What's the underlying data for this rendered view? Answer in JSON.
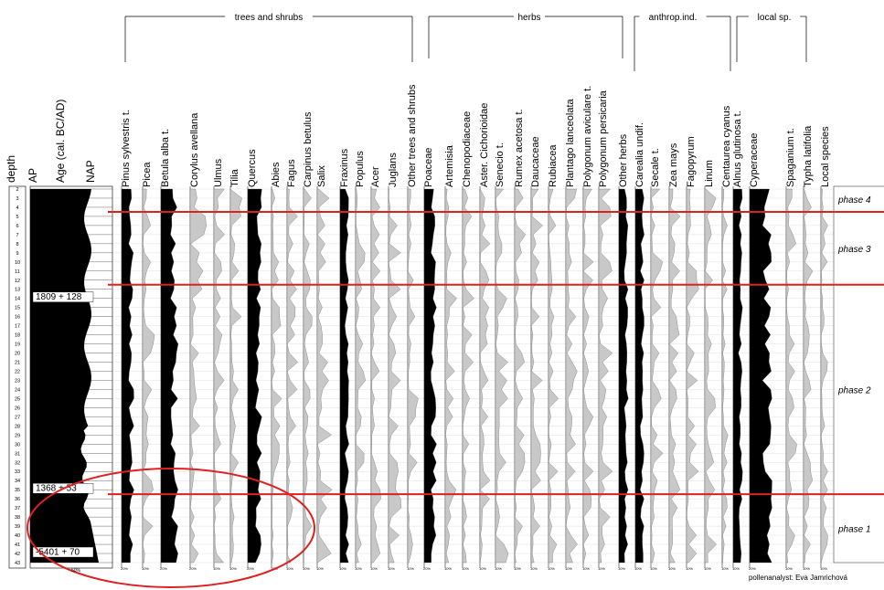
{
  "chart_data": {
    "type": "area",
    "depth_label": "depth",
    "age_label": "Age (cal. BC/AD)",
    "ap_label": "AP",
    "nap_label": "NAP",
    "depths": [
      "2",
      "3",
      "4",
      "5",
      "6",
      "7",
      "8",
      "9",
      "10",
      "11",
      "12",
      "13",
      "14",
      "15",
      "16",
      "17",
      "18",
      "19",
      "20",
      "21",
      "22",
      "23",
      "24",
      "25",
      "26",
      "27",
      "28",
      "29",
      "30",
      "31",
      "32",
      "33",
      "34",
      "35",
      "36",
      "37",
      "38",
      "39",
      "40",
      "41",
      "42",
      "43"
    ],
    "dates": [
      {
        "text": "1809 + 128",
        "depth": 14
      },
      {
        "text": "1368 + 53",
        "depth": 35
      },
      {
        "text": "-5401 + 70",
        "depth": 42
      }
    ],
    "ap_axis_label": "50%",
    "groups": [
      {
        "name": "trees and shrubs"
      },
      {
        "name": "herbs"
      },
      {
        "name": "anthrop.ind."
      },
      {
        "name": "local sp."
      }
    ],
    "taxa": [
      {
        "name": "Pinus sylvestris t.",
        "fill": "black",
        "tick": "20%"
      },
      {
        "name": "Picea",
        "fill": "grey",
        "tick": "10%"
      },
      {
        "name": "Betula alba t.",
        "fill": "black",
        "tick": "20%"
      },
      {
        "name": "Corylus avellana",
        "fill": "grey",
        "tick": "20%"
      },
      {
        "name": "Ulmus",
        "fill": "grey",
        "tick": "10%"
      },
      {
        "name": "Tilia",
        "fill": "grey",
        "tick": "10%"
      },
      {
        "name": "Quercus",
        "fill": "black",
        "tick": "20%"
      },
      {
        "name": "Abies",
        "fill": "grey",
        "tick": "10%"
      },
      {
        "name": "Fagus",
        "fill": "grey",
        "tick": "10%"
      },
      {
        "name": "Carpinus betulus",
        "fill": "grey",
        "tick": "10%"
      },
      {
        "name": "Salix",
        "fill": "grey",
        "tick": "10%"
      },
      {
        "name": "Fraxinus",
        "fill": "black",
        "tick": "10%"
      },
      {
        "name": "Populus",
        "fill": "grey",
        "tick": "10%"
      },
      {
        "name": "Acer",
        "fill": "grey",
        "tick": "10%"
      },
      {
        "name": "Juglans",
        "fill": "grey",
        "tick": "10%"
      },
      {
        "name": "Other trees and shrubs",
        "fill": "grey",
        "tick": "10%"
      },
      {
        "name": "Poaceae",
        "fill": "black",
        "tick": "20%"
      },
      {
        "name": "Artemisia",
        "fill": "grey",
        "tick": "10%"
      },
      {
        "name": "Chenopodiaceae",
        "fill": "grey",
        "tick": "10%"
      },
      {
        "name": "Aster. Cichorioidae",
        "fill": "grey",
        "tick": "10%"
      },
      {
        "name": "Senecio t.",
        "fill": "grey",
        "tick": "10%"
      },
      {
        "name": "Rumex acetosa t.",
        "fill": "grey",
        "tick": "10%"
      },
      {
        "name": "Daucaceae",
        "fill": "grey",
        "tick": "10%"
      },
      {
        "name": "Rubiacea",
        "fill": "grey",
        "tick": "10%"
      },
      {
        "name": "Plantago lanceolata",
        "fill": "grey",
        "tick": "10%"
      },
      {
        "name": "Polygonum aviculare t.",
        "fill": "grey",
        "tick": "10%"
      },
      {
        "name": "Polygonum persicaria",
        "fill": "grey",
        "tick": "10%"
      },
      {
        "name": "Other herbs",
        "fill": "black",
        "tick": "10%"
      },
      {
        "name": "Carealia undif.",
        "fill": "black",
        "tick": "10%"
      },
      {
        "name": "Secale t.",
        "fill": "grey",
        "tick": "10%"
      },
      {
        "name": "Zea mays",
        "fill": "grey",
        "tick": "10%"
      },
      {
        "name": "Fagopyrum",
        "fill": "grey",
        "tick": "10%"
      },
      {
        "name": "Linum",
        "fill": "grey",
        "tick": "10%"
      },
      {
        "name": "Centaurea cyanus",
        "fill": "grey",
        "tick": "10%"
      },
      {
        "name": "Alnus glutinosa t.",
        "fill": "black",
        "tick": "10%"
      },
      {
        "name": "Cyperaceae",
        "fill": "black",
        "tick": "20%"
      },
      {
        "name": "Spaganium t.",
        "fill": "grey",
        "tick": "10%"
      },
      {
        "name": "Typha latifolia",
        "fill": "grey",
        "tick": "10%"
      },
      {
        "name": "Local species",
        "fill": "grey",
        "tick": "10%"
      }
    ],
    "phases": [
      {
        "name": "phase 4",
        "from_depth": 2,
        "to_depth": 4.5
      },
      {
        "name": "phase 3",
        "from_depth": 4.5,
        "to_depth": 12.5
      },
      {
        "name": "phase 2",
        "from_depth": 12.5,
        "to_depth": 35.5
      },
      {
        "name": "phase 1",
        "from_depth": 35.5,
        "to_depth": 43
      }
    ],
    "boundaries_depth": [
      4.5,
      12.5,
      35.5
    ],
    "credit": "pollenanalyst: Eva Jamrichová",
    "colors": {
      "boundary": "#e02020",
      "ellipse": "#e02020",
      "grey_curve": "#c8c8c8",
      "black_curve": "#000000"
    }
  }
}
